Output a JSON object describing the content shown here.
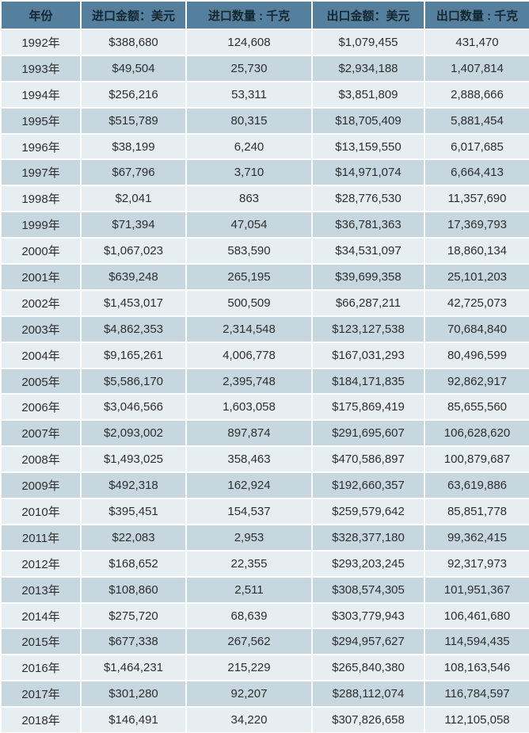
{
  "chart_data": {
    "type": "table",
    "columns": [
      "年份",
      "进口金额：美元",
      "进口数量 : 千克",
      "出口金额：美元",
      "出口数量 : 千克"
    ],
    "rows": [
      [
        "1992年",
        "$388,680",
        "124,608",
        "$1,079,455",
        "431,470"
      ],
      [
        "1993年",
        "$49,504",
        "25,730",
        "$2,934,188",
        "1,407,814"
      ],
      [
        "1994年",
        "$256,216",
        "53,311",
        "$3,851,809",
        "2,888,666"
      ],
      [
        "1995年",
        "$515,789",
        "80,315",
        "$18,705,409",
        "5,881,454"
      ],
      [
        "1996年",
        "$38,199",
        "6,240",
        "$13,159,550",
        "6,017,685"
      ],
      [
        "1997年",
        "$67,796",
        "3,710",
        "$14,971,074",
        "6,664,413"
      ],
      [
        "1998年",
        "$2,041",
        "863",
        "$28,776,530",
        "11,357,690"
      ],
      [
        "1999年",
        "$71,394",
        "47,054",
        "$36,781,363",
        "17,369,793"
      ],
      [
        "2000年",
        "$1,067,023",
        "583,590",
        "$34,531,097",
        "18,860,134"
      ],
      [
        "2001年",
        "$639,248",
        "265,195",
        "$39,699,358",
        "25,101,203"
      ],
      [
        "2002年",
        "$1,453,017",
        "500,509",
        "$66,287,211",
        "42,725,073"
      ],
      [
        "2003年",
        "$4,862,353",
        "2,314,548",
        "$123,127,538",
        "70,684,840"
      ],
      [
        "2004年",
        "$9,165,261",
        "4,006,778",
        "$167,031,293",
        "80,496,599"
      ],
      [
        "2005年",
        "$5,586,170",
        "2,395,748",
        "$184,171,835",
        "92,862,917"
      ],
      [
        "2006年",
        "$3,046,566",
        "1,603,058",
        "$175,869,419",
        "85,655,560"
      ],
      [
        "2007年",
        "$2,093,002",
        "897,874",
        "$291,695,607",
        "106,628,620"
      ],
      [
        "2008年",
        "$1,493,025",
        "358,463",
        "$470,586,897",
        "100,879,687"
      ],
      [
        "2009年",
        "$492,318",
        "162,924",
        "$192,660,357",
        "63,619,886"
      ],
      [
        "2010年",
        "$395,451",
        "154,537",
        "$259,579,642",
        "85,851,778"
      ],
      [
        "2011年",
        "$22,083",
        "2,953",
        "$328,377,180",
        "99,362,415"
      ],
      [
        "2012年",
        "$168,652",
        "22,355",
        "$293,203,245",
        "92,317,973"
      ],
      [
        "2013年",
        "$108,860",
        "2,511",
        "$308,574,305",
        "101,951,367"
      ],
      [
        "2014年",
        "$275,720",
        "68,639",
        "$303,779,943",
        "106,461,680"
      ],
      [
        "2015年",
        "$677,338",
        "267,562",
        "$294,957,627",
        "114,594,435"
      ],
      [
        "2016年",
        "$1,464,231",
        "215,229",
        "$265,840,380",
        "108,163,546"
      ],
      [
        "2017年",
        "$301,280",
        "92,207",
        "$288,112,074",
        "116,784,597"
      ],
      [
        "2018年",
        "$146,491",
        "34,220",
        "$307,826,658",
        "112,105,058"
      ]
    ]
  },
  "colors": {
    "header_bg": "#55809d",
    "header_text": "#152630",
    "row_light": "#e6eef2",
    "row_dark": "#c6d7e0",
    "cell_text": "#2e2e2e",
    "grid": "#fdfdfd"
  }
}
